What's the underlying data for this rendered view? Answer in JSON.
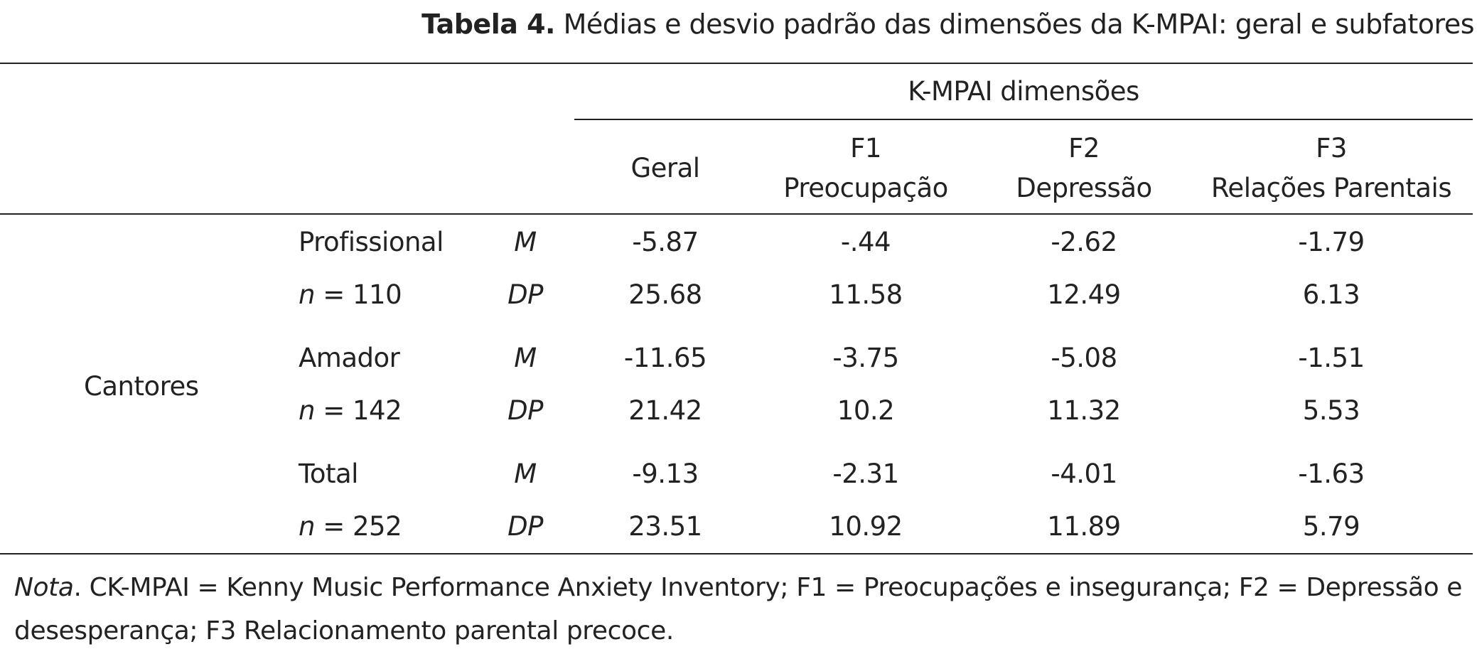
{
  "caption": {
    "label": "Tabela 4.",
    "text": "Médias e desvio padrão das dimensões da K-MPAI: geral e subfatores"
  },
  "header": {
    "group_label": "K-MPAI dimensões",
    "columns": [
      {
        "line1": "",
        "line2": "Geral"
      },
      {
        "line1": "F1",
        "line2": "Preocupação"
      },
      {
        "line1": "F2",
        "line2": "Depressão"
      },
      {
        "line1": "F3",
        "line2": "Relações Parentais"
      }
    ]
  },
  "row_group": "Cantores",
  "groups": [
    {
      "name": "Profissional",
      "n_label": "n",
      "n_value": "= 110",
      "stat_m": "M",
      "stat_dp": "DP",
      "m": [
        "-5.87",
        "-.44",
        "-2.62",
        "-1.79"
      ],
      "dp": [
        "25.68",
        "11.58",
        "12.49",
        "6.13"
      ]
    },
    {
      "name": "Amador",
      "n_label": "n",
      "n_value": "= 142",
      "stat_m": "M",
      "stat_dp": "DP",
      "m": [
        "-11.65",
        "-3.75",
        "-5.08",
        "-1.51"
      ],
      "dp": [
        "21.42",
        "10.2",
        "11.32",
        "5.53"
      ]
    },
    {
      "name": "Total",
      "n_label": "n",
      "n_value": "= 252",
      "stat_m": "M",
      "stat_dp": "DP",
      "m": [
        "-9.13",
        "-2.31",
        "-4.01",
        "-1.63"
      ],
      "dp": [
        "23.51",
        "10.92",
        "11.89",
        "5.79"
      ]
    }
  ],
  "note": {
    "label": "Nota",
    "text": ". CK-MPAI = Kenny Music Performance Anxiety Inventory; F1 = Preocupações e insegurança; F2 = Depressão e desesperança; F3 Relacionamento parental precoce."
  }
}
